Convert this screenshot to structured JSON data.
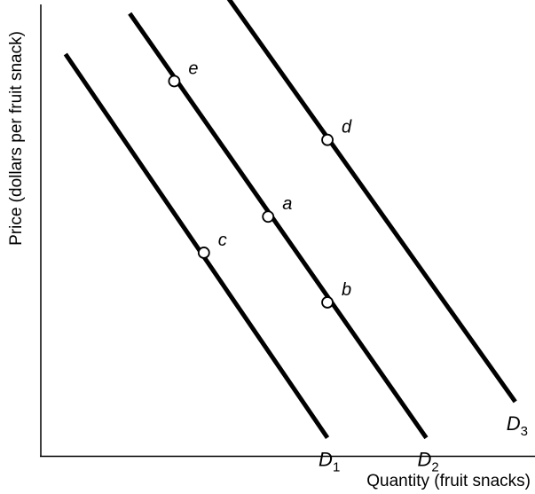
{
  "chart_data": {
    "type": "line",
    "title": "",
    "xlabel": "Quantity (fruit snacks)",
    "ylabel": "Price (dollars per fruit snack)",
    "xlim": [
      0,
      10
    ],
    "ylim": [
      0,
      10
    ],
    "grid": false,
    "legend": "none",
    "series": [
      {
        "name": "D1",
        "label_main": "D",
        "label_sub": "1",
        "x": [
          0.5,
          5.8
        ],
        "y": [
          8.9,
          0.4
        ]
      },
      {
        "name": "D2",
        "label_main": "D",
        "label_sub": "2",
        "x": [
          1.8,
          7.8
        ],
        "y": [
          9.8,
          0.4
        ]
      },
      {
        "name": "D3",
        "label_main": "D",
        "label_sub": "3",
        "x": [
          3.3,
          9.6
        ],
        "y": [
          10.9,
          1.2
        ]
      }
    ],
    "points": [
      {
        "label": "e",
        "series": "D2",
        "x": 2.7,
        "y": 8.3
      },
      {
        "label": "a",
        "series": "D2",
        "x": 4.6,
        "y": 5.3
      },
      {
        "label": "b",
        "series": "D2",
        "x": 5.8,
        "y": 3.4
      },
      {
        "label": "c",
        "series": "D1",
        "x": 3.3,
        "y": 4.5
      },
      {
        "label": "d",
        "series": "D3",
        "x": 5.8,
        "y": 7.0
      }
    ]
  }
}
